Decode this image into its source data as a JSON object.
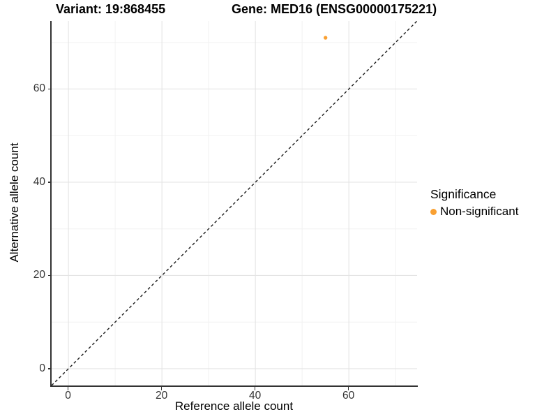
{
  "titles": {
    "variant": "Variant: 19:868455",
    "gene": "Gene: MED16 (ENSG00000175221)"
  },
  "axes": {
    "x": {
      "label": "Reference allele count"
    },
    "y": {
      "label": "Alternative allele count"
    }
  },
  "legend": {
    "title": "Significance",
    "items": [
      {
        "label": "Non-significant",
        "color": "#F9A032"
      }
    ]
  },
  "chart_data": {
    "type": "scatter",
    "title": "Variant: 19:868455 — Gene: MED16 (ENSG00000175221)",
    "xlabel": "Reference allele count",
    "ylabel": "Alternative allele count",
    "xlim": [
      -3.6,
      74.6
    ],
    "ylim": [
      -3.6,
      74.6
    ],
    "x_ticks": {
      "values": [
        0,
        20,
        40,
        60
      ],
      "labels": [
        "0",
        "20",
        "40",
        "60"
      ]
    },
    "y_ticks": {
      "values": [
        0,
        20,
        40,
        60
      ],
      "labels": [
        "0",
        "20",
        "40",
        "60"
      ]
    },
    "grid": {
      "major": [
        0,
        20,
        40,
        60
      ],
      "minor": [
        10,
        30,
        50,
        70
      ],
      "visible": true
    },
    "series": [
      {
        "name": "Non-significant",
        "color": "#F9A032",
        "points": [
          {
            "x": 55,
            "y": 71
          }
        ]
      }
    ],
    "identity_line": {
      "style": "dashed",
      "equation": "y = x",
      "from": -3.6,
      "to": 74.6
    },
    "legend_position": "right",
    "colors": {
      "point": "#F9A032",
      "grid_major": "#e4e4e4",
      "grid_minor": "#f2f2f2",
      "axis_line": "#333333",
      "dashed_line": "#1a1a1a",
      "tick_text": "#333333"
    }
  }
}
